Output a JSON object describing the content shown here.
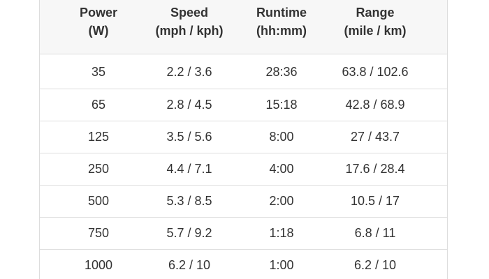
{
  "table": {
    "header": [
      [
        "Power",
        "(W)"
      ],
      [
        "Speed",
        "(mph / kph)"
      ],
      [
        "Runtime",
        "(hh:mm)"
      ],
      [
        "Range",
        "(mile / km)"
      ]
    ],
    "rows": [
      [
        "35",
        "2.2 / 3.6",
        "28:36",
        "63.8 / 102.6"
      ],
      [
        "65",
        "2.8 / 4.5",
        "15:18",
        "42.8 / 68.9"
      ],
      [
        "125",
        "3.5 / 5.6",
        "8:00",
        "27 / 43.7"
      ],
      [
        "250",
        "4.4 / 7.1",
        "4:00",
        "17.6 / 28.4"
      ],
      [
        "500",
        "5.3 / 8.5",
        "2:00",
        "10.5 / 17"
      ],
      [
        "750",
        "5.7 / 9.2",
        "1:18",
        "6.8 / 11"
      ],
      [
        "1000",
        "6.2 / 10",
        "1:00",
        "6.2 / 10"
      ]
    ]
  }
}
